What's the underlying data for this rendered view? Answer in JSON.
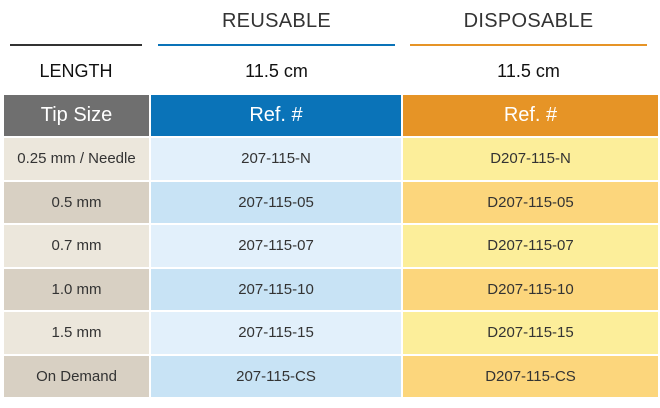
{
  "headers": {
    "reusable": "REUSABLE",
    "disposable": "DISPOSABLE",
    "length_label": "LENGTH",
    "length_reusable": "11.5 cm",
    "length_disposable": "11.5 cm"
  },
  "table": {
    "columns": [
      "Tip Size",
      "Ref. #",
      "Ref. #"
    ],
    "rows": [
      [
        "0.25 mm / Needle",
        "207-115-N",
        "D207-115-N"
      ],
      [
        "0.5 mm",
        "207-115-05",
        "D207-115-05"
      ],
      [
        "0.7 mm",
        "207-115-07",
        "D207-115-07"
      ],
      [
        "1.0 mm",
        "207-115-10",
        "D207-115-10"
      ],
      [
        "1.5 mm",
        "207-115-15",
        "D207-115-15"
      ],
      [
        "On Demand",
        "207-115-CS",
        "D207-115-CS"
      ]
    ]
  },
  "colors": {
    "rule_dark": "#333333",
    "reusable_accent": "#0a73b8",
    "disposable_accent": "#e69426",
    "tip_header": "#6f6f6f",
    "tip_light": "#ece7dc",
    "tip_dark": "#d8d0c3",
    "reuse_light": "#e2f0fb",
    "reuse_dark": "#c8e3f5",
    "disp_light": "#fcee9a",
    "disp_dark": "#fcd67c"
  }
}
